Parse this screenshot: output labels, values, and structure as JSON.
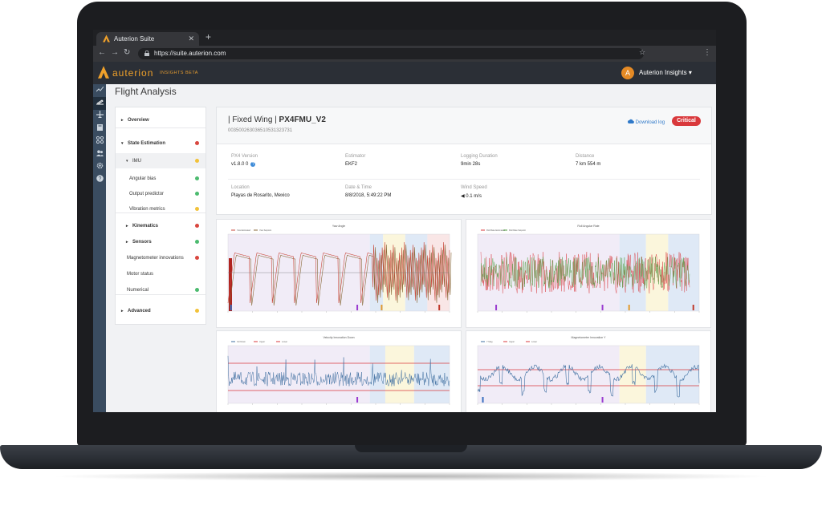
{
  "browser": {
    "tab_title": "Auterion Suite",
    "tab_close": "✕",
    "new_tab": "+",
    "url": "https://suite.auterion.com",
    "back": "←",
    "forward": "→",
    "reload": "↻",
    "star": "☆",
    "menu": "⋮"
  },
  "app": {
    "brand": "auterion",
    "brand_sub": "INSIGHTS  BETA",
    "user_initial": "A",
    "user_name": "Auterion Insights ▾",
    "page_title": "Flight Analysis"
  },
  "iconbar": [
    "chart-icon",
    "flight-icon",
    "plane-icon",
    "book-icon",
    "drone-icon",
    "users-icon",
    "gear-icon",
    "help-icon"
  ],
  "sidebar": {
    "items": [
      {
        "label": "Overview",
        "caret": "▸",
        "status": null
      },
      {
        "label": "State Estimation",
        "caret": "▾",
        "status": "red"
      },
      {
        "label": "IMU",
        "caret": "▾",
        "status": "yellow"
      },
      {
        "label": "Angular bias",
        "caret": "",
        "status": "green"
      },
      {
        "label": "Output predictor",
        "caret": "",
        "status": "green"
      },
      {
        "label": "Vibration metrics",
        "caret": "",
        "status": "yellow"
      },
      {
        "label": "Kinematics",
        "caret": "▸",
        "status": "red"
      },
      {
        "label": "Sensors",
        "caret": "▸",
        "status": "green"
      },
      {
        "label": "Magnetometer innovations",
        "caret": "",
        "status": "red"
      },
      {
        "label": "Motor status",
        "caret": "",
        "status": null
      },
      {
        "label": "Numerical",
        "caret": "",
        "status": "green"
      },
      {
        "label": "Advanced",
        "caret": "▸",
        "status": "yellow"
      }
    ]
  },
  "status_colors": {
    "red": "#d9473f",
    "yellow": "#f2c23a",
    "green": "#4cbb6f"
  },
  "flight": {
    "title_prefix": "| Fixed Wing | ",
    "title_id": "PX4FMU_V2",
    "serial": "00350026303651053132373​1",
    "download": "Download log",
    "badge": "Critical",
    "fields": [
      {
        "key": "PX4 Version",
        "value": "v1.8.0 0"
      },
      {
        "key": "Estimator",
        "value": "EKF2"
      },
      {
        "key": "Logging Duration",
        "value": "9min 28s"
      },
      {
        "key": "Distance",
        "value": "7 km 554 m"
      },
      {
        "key": "Location",
        "value": "Playas de Rosarito, Mexico"
      },
      {
        "key": "Date & Time",
        "value": "8/8/2018, 5:49:22 PM"
      },
      {
        "key": "Wind Speed",
        "value": "◀ 0.1 m/s"
      }
    ]
  },
  "charts": {
    "yaw": {
      "title": "Yaw Angle",
      "legend": [
        "Yaw Estimated",
        "Yaw Setpoint"
      ],
      "colors": [
        "#c94a3c",
        "#8a6a3a"
      ]
    },
    "roll": {
      "title": "Roll Angular Rate",
      "legend": [
        "Roll Rate Estimated",
        "Roll Rate Setpoint"
      ],
      "colors": [
        "#d8393c",
        "#4c9a3e"
      ]
    },
    "vel": {
      "title": "Velocity Innovation Down",
      "legend": [
        "Vel Down",
        "Upper",
        "Lower"
      ],
      "colors": [
        "#3f6fa1",
        "#d8393c",
        "#d8393c"
      ]
    },
    "mag": {
      "title": "Magnetometer Innovation Y",
      "legend": [
        "Y Mag",
        "Upper",
        "Lower"
      ],
      "colors": [
        "#3f6fa1",
        "#d8393c",
        "#d8393c"
      ]
    }
  }
}
